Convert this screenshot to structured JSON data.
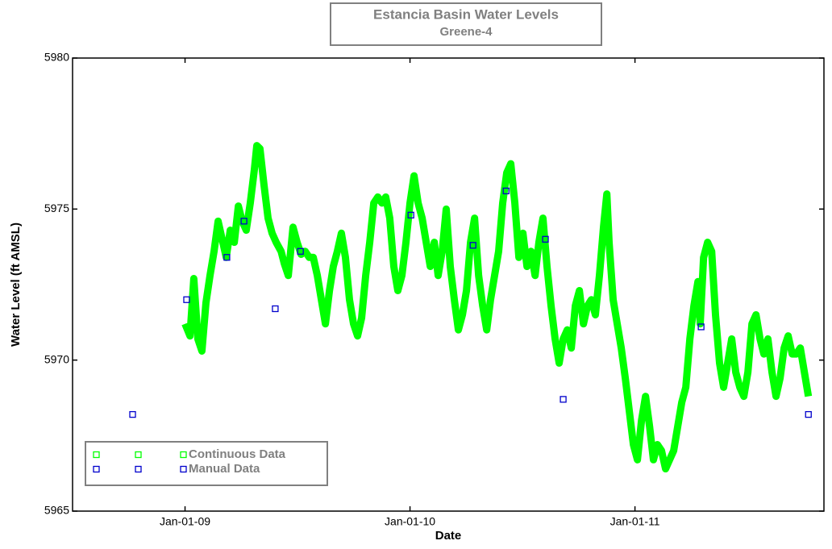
{
  "chart_data": {
    "type": "scatter",
    "title": "Estancia Basin Water Levels",
    "subtitle": "Greene-4",
    "x_label": "Date",
    "y_label": "Water Level (ft AMSL)",
    "xlim": [
      2008.5,
      2011.84
    ],
    "ylim": [
      5965,
      5980
    ],
    "xticks": [
      {
        "value": 2009,
        "label": "Jan-01-09"
      },
      {
        "value": 2010,
        "label": "Jan-01-10"
      },
      {
        "value": 2011,
        "label": "Jan-01-11"
      }
    ],
    "yticks": [
      5965,
      5970,
      5975,
      5980
    ],
    "legend": "lower left",
    "series": [
      {
        "name": "Continuous Data",
        "color": "#00ff00",
        "mode": "dense",
        "x": [
          2009.0,
          2009.022,
          2009.039,
          2009.057,
          2009.075,
          2009.093,
          2009.111,
          2009.129,
          2009.147,
          2009.165,
          2009.183,
          2009.201,
          2009.219,
          2009.237,
          2009.254,
          2009.272,
          2009.29,
          2009.308,
          2009.319,
          2009.333,
          2009.351,
          2009.369,
          2009.387,
          2009.405,
          2009.427,
          2009.441,
          2009.459,
          2009.48,
          2009.498,
          2009.516,
          2009.534,
          2009.552,
          2009.57,
          2009.588,
          2009.606,
          2009.624,
          2009.642,
          2009.659,
          2009.677,
          2009.695,
          2009.713,
          2009.731,
          2009.749,
          2009.767,
          2009.785,
          2009.803,
          2009.821,
          2009.839,
          2009.857,
          2009.875,
          2009.892,
          2009.91,
          2009.928,
          2009.946,
          2009.964,
          2009.982,
          2010.0,
          2010.018,
          2010.036,
          2010.054,
          2010.072,
          2010.09,
          2010.108,
          2010.125,
          2010.143,
          2010.161,
          2010.179,
          2010.197,
          2010.215,
          2010.233,
          2010.251,
          2010.269,
          2010.287,
          2010.305,
          2010.323,
          2010.341,
          2010.358,
          2010.376,
          2010.394,
          2010.412,
          2010.43,
          2010.448,
          2010.466,
          2010.484,
          2010.502,
          2010.52,
          2010.538,
          2010.556,
          2010.573,
          2010.591,
          2010.609,
          2010.627,
          2010.645,
          2010.663,
          2010.681,
          2010.699,
          2010.717,
          2010.735,
          2010.753,
          2010.771,
          2010.789,
          2010.806,
          2010.824,
          2010.842,
          2010.86,
          2010.875,
          2010.885,
          2010.903,
          2010.921,
          2010.939,
          2010.957,
          2010.975,
          2010.993,
          2011.011,
          2011.029,
          2011.047,
          2011.065,
          2011.082,
          2011.1,
          2011.118,
          2011.136,
          2011.154,
          2011.172,
          2011.19,
          2011.208,
          2011.226,
          2011.244,
          2011.262,
          2011.28,
          2011.29,
          2011.305,
          2011.323,
          2011.341,
          2011.358,
          2011.376,
          2011.394,
          2011.412,
          2011.43,
          2011.448,
          2011.466,
          2011.484,
          2011.502,
          2011.52,
          2011.538,
          2011.556,
          2011.573,
          2011.591,
          2011.609,
          2011.627,
          2011.645,
          2011.663,
          2011.681,
          2011.699,
          2011.717,
          2011.735,
          2011.753,
          2011.771
        ],
        "values": [
          5971.2,
          5970.8,
          5972.7,
          5970.7,
          5970.3,
          5971.9,
          5972.8,
          5973.6,
          5974.6,
          5974.0,
          5973.4,
          5974.3,
          5973.9,
          5975.1,
          5974.6,
          5974.3,
          5975.2,
          5976.3,
          5977.1,
          5977.0,
          5975.8,
          5974.7,
          5974.2,
          5973.9,
          5973.6,
          5973.2,
          5972.8,
          5974.4,
          5973.9,
          5973.5,
          5973.6,
          5973.4,
          5973.4,
          5972.8,
          5972.0,
          5971.2,
          5972.3,
          5973.1,
          5973.6,
          5974.2,
          5973.4,
          5972.0,
          5971.2,
          5970.8,
          5971.4,
          5972.8,
          5973.9,
          5975.2,
          5975.4,
          5975.2,
          5975.4,
          5974.7,
          5973.1,
          5972.3,
          5972.8,
          5973.9,
          5975.2,
          5976.1,
          5975.2,
          5974.7,
          5973.9,
          5973.1,
          5973.9,
          5972.8,
          5973.6,
          5975.0,
          5973.1,
          5972.0,
          5971.0,
          5971.5,
          5972.3,
          5973.9,
          5974.7,
          5972.8,
          5971.8,
          5971.0,
          5972.0,
          5972.8,
          5973.6,
          5975.2,
          5976.2,
          5976.5,
          5975.2,
          5973.4,
          5974.2,
          5973.1,
          5973.6,
          5972.8,
          5973.9,
          5974.7,
          5973.1,
          5971.8,
          5970.7,
          5969.9,
          5970.7,
          5971.0,
          5970.4,
          5971.8,
          5972.3,
          5971.2,
          5971.8,
          5972.0,
          5971.5,
          5972.8,
          5974.4,
          5975.5,
          5973.9,
          5972.0,
          5971.2,
          5970.4,
          5969.4,
          5968.3,
          5967.2,
          5966.7,
          5968.0,
          5968.8,
          5967.8,
          5966.7,
          5967.2,
          5967.0,
          5966.4,
          5966.7,
          5967.0,
          5967.8,
          5968.6,
          5969.1,
          5970.7,
          5971.8,
          5972.6,
          5971.2,
          5973.4,
          5973.9,
          5973.6,
          5971.5,
          5969.9,
          5969.1,
          5969.9,
          5970.7,
          5969.6,
          5969.1,
          5968.8,
          5969.6,
          5971.2,
          5971.5,
          5970.7,
          5970.2,
          5970.7,
          5969.6,
          5968.8,
          5969.4,
          5970.4,
          5970.8,
          5970.2,
          5970.2,
          5970.4,
          5969.6,
          5968.8
        ]
      },
      {
        "name": "Manual Data",
        "color": "#0000cc",
        "mode": "markers",
        "x": [
          2008.767,
          2009.007,
          2009.186,
          2009.262,
          2009.401,
          2009.513,
          2010.004,
          2010.28,
          2010.427,
          2010.602,
          2010.681,
          2011.294,
          2011.771
        ],
        "values": [
          5968.2,
          5972.0,
          5973.4,
          5974.6,
          5971.7,
          5973.6,
          5974.8,
          5973.8,
          5975.6,
          5974.0,
          5968.7,
          5971.1,
          5968.2
        ]
      }
    ]
  }
}
